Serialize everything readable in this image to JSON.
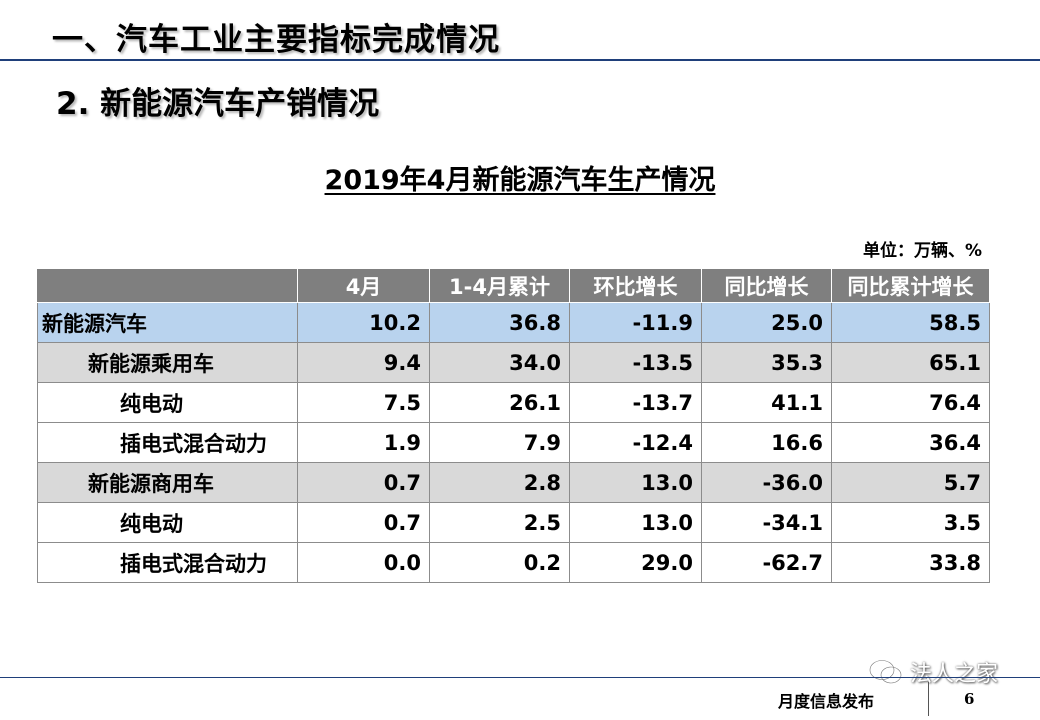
{
  "header": {
    "section_title": "一、汽车工业主要指标完成情况",
    "subsection_title": "2. 新能源汽车产销情况"
  },
  "table": {
    "title": "2019年4月新能源汽车生产情况",
    "unit": "单位：万辆、%",
    "columns": [
      "",
      "4月",
      "1-4月累计",
      "环比增长",
      "同比增长",
      "同比累计增长"
    ],
    "rows": [
      {
        "label": "新能源汽车",
        "level": 0,
        "values": [
          "10.2",
          "36.8",
          "-11.9",
          "25.0",
          "58.5"
        ]
      },
      {
        "label": "新能源乘用车",
        "level": 1,
        "values": [
          "9.4",
          "34.0",
          "-13.5",
          "35.3",
          "65.1"
        ]
      },
      {
        "label": "纯电动",
        "level": 2,
        "values": [
          "7.5",
          "26.1",
          "-13.7",
          "41.1",
          "76.4"
        ]
      },
      {
        "label": "插电式混合动力",
        "level": 2,
        "values": [
          "1.9",
          "7.9",
          "-12.4",
          "16.6",
          "36.4"
        ]
      },
      {
        "label": "新能源商用车",
        "level": 1,
        "values": [
          "0.7",
          "2.8",
          "13.0",
          "-36.0",
          "5.7"
        ]
      },
      {
        "label": "纯电动",
        "level": 2,
        "values": [
          "0.7",
          "2.5",
          "13.0",
          "-34.1",
          "3.5"
        ]
      },
      {
        "label": "插电式混合动力",
        "level": 2,
        "values": [
          "0.0",
          "0.2",
          "29.0",
          "-62.7",
          "33.8"
        ]
      }
    ]
  },
  "footer": {
    "label": "月度信息发布",
    "page_number": "6"
  },
  "watermark": {
    "text": "法人之家",
    "icon": "wechat-icon"
  }
}
